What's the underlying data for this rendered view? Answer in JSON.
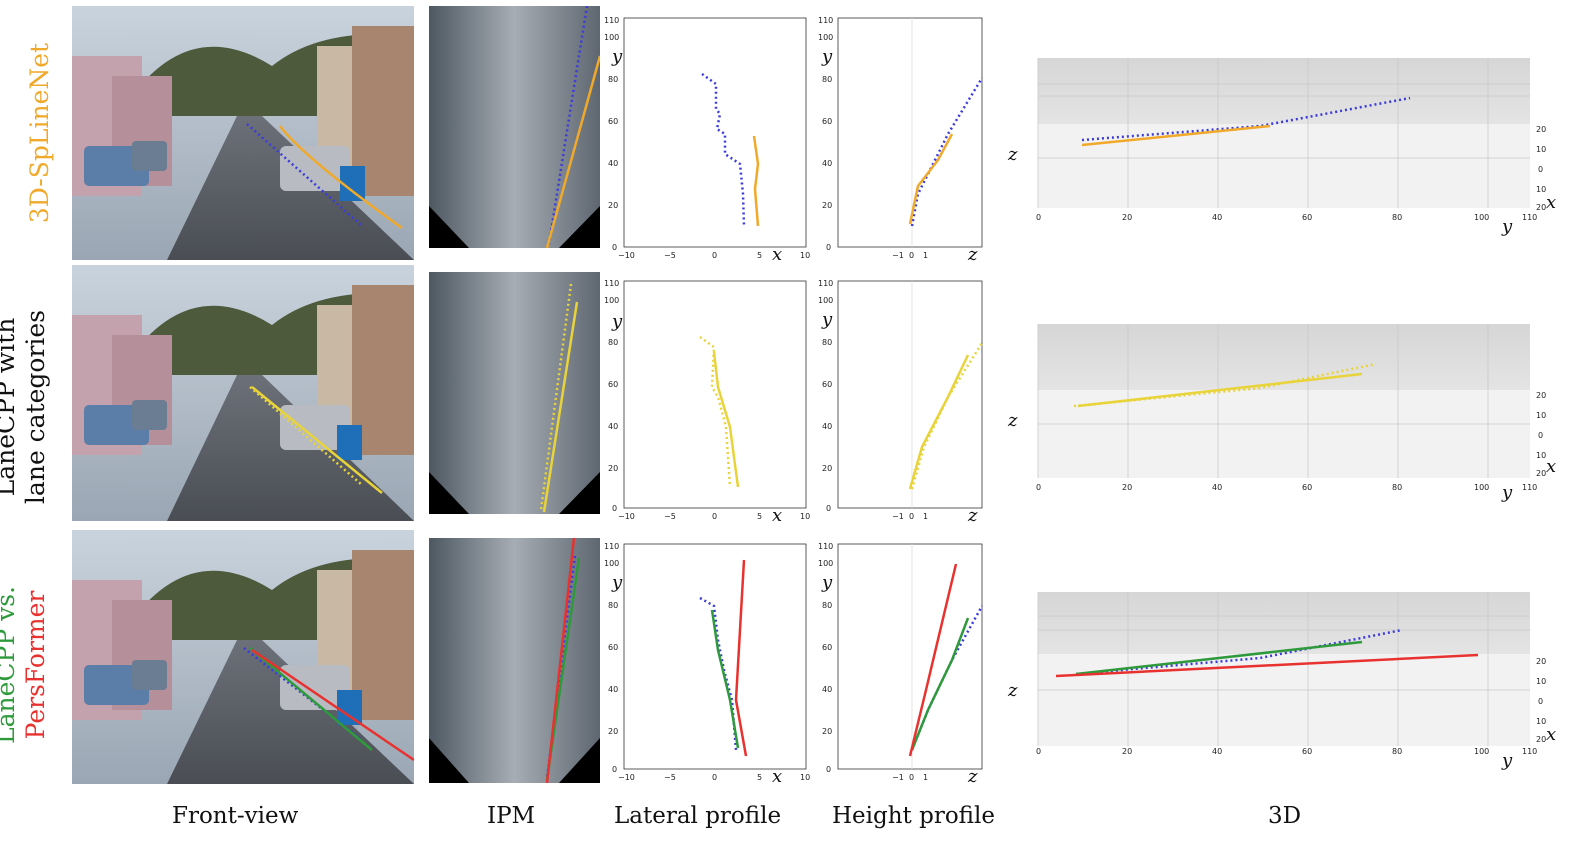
{
  "columns": {
    "front_view": "Front-view",
    "ipm": "IPM",
    "lateral": "Lateral profile",
    "height": "Height profile",
    "three_d": "3D"
  },
  "rows": [
    {
      "label_lines": [
        "3D-SpLineNet"
      ],
      "label_colors": [
        "#f0a92a"
      ]
    },
    {
      "label_lines": [
        "LaneCPP with",
        "lane categories"
      ],
      "label_colors": [
        "#111111",
        "#111111"
      ]
    },
    {
      "label_lines": [
        "LaneCPP vs.",
        "PersFormer"
      ],
      "label_colors": [
        "#2e9a3c",
        "#e8322f"
      ]
    }
  ],
  "axes": {
    "lateral": {
      "xlabel": "x",
      "ylabel": "y",
      "xticks": [
        "−10",
        "−5",
        "0",
        "5",
        "10"
      ],
      "yticks": [
        "0",
        "20",
        "40",
        "60",
        "80",
        "100",
        "110"
      ]
    },
    "height": {
      "xlabel": "z",
      "ylabel": "y",
      "xticks": [
        "−1",
        "0",
        "1"
      ],
      "yticks": [
        "0",
        "20",
        "40",
        "60",
        "80",
        "100",
        "110"
      ]
    },
    "three_d": {
      "xlabel": "x",
      "ylabel": "y",
      "zlabel": "z",
      "yticks": [
        "0",
        "20",
        "40",
        "60",
        "80",
        "100",
        "110"
      ],
      "xticks_side": [
        "20",
        "10",
        "0",
        "10",
        "20"
      ]
    }
  },
  "colors": {
    "ground_truth": "#3b3bdc",
    "spline": "#f0a92a",
    "lanecpp_cat": "#e8d43a",
    "lanecpp": "#2e9a3c",
    "persformer": "#e8322f"
  }
}
